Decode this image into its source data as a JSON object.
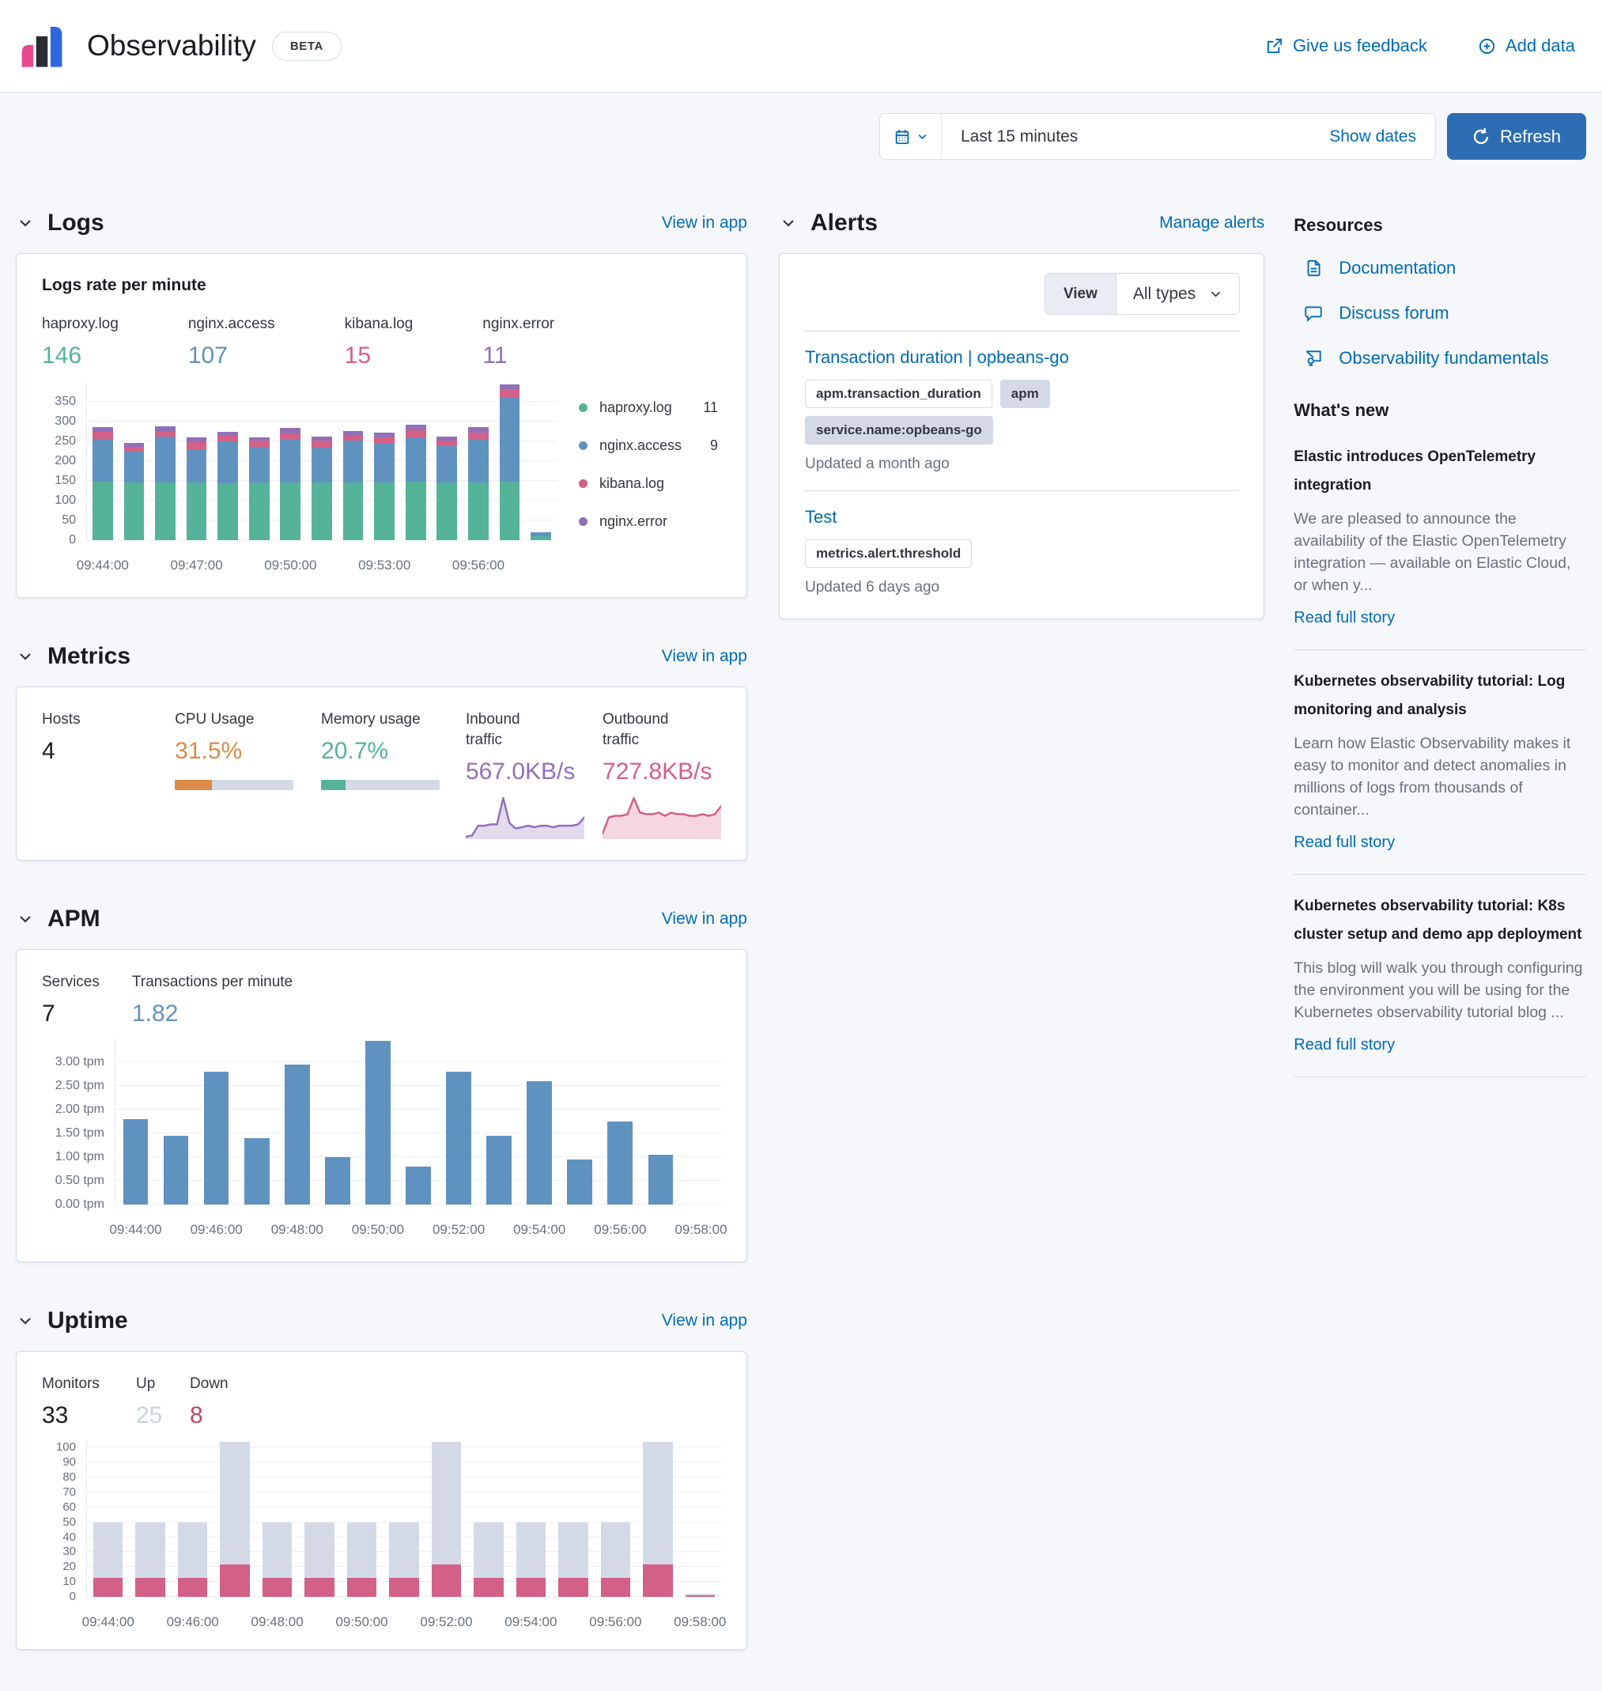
{
  "header": {
    "title": "Observability",
    "beta_badge": "BETA",
    "feedback_link": "Give us feedback",
    "add_data_link": "Add data"
  },
  "timebar": {
    "range_label": "Last 15 minutes",
    "show_dates_label": "Show dates",
    "refresh_label": "Refresh"
  },
  "sections": {
    "logs": {
      "title": "Logs",
      "action": "View in app"
    },
    "alerts": {
      "title": "Alerts",
      "action": "Manage alerts"
    },
    "metrics": {
      "title": "Metrics",
      "action": "View in app"
    },
    "apm": {
      "title": "APM",
      "action": "View in app"
    },
    "uptime": {
      "title": "Uptime",
      "action": "View in app"
    }
  },
  "logs_card": {
    "title": "Logs rate per minute",
    "stats": [
      {
        "label": "haproxy.log",
        "value": "146",
        "color": "#54B399"
      },
      {
        "label": "nginx.access",
        "value": "107",
        "color": "#6092C0"
      },
      {
        "label": "kibana.log",
        "value": "15",
        "color": "#D36086"
      },
      {
        "label": "nginx.error",
        "value": "11",
        "color": "#9170B8"
      }
    ],
    "legend": [
      {
        "label": "haproxy.log",
        "value": "11",
        "color": "#54B399"
      },
      {
        "label": "nginx.access",
        "value": "9",
        "color": "#6092C0"
      },
      {
        "label": "kibana.log",
        "value": "",
        "color": "#D36086"
      },
      {
        "label": "nginx.error",
        "value": "",
        "color": "#9170B8"
      }
    ],
    "chart_data": {
      "type": "bar",
      "stacked": true,
      "title": "Logs rate per minute",
      "categories": [
        "09:44:00",
        "09:45:00",
        "09:46:00",
        "09:47:00",
        "09:48:00",
        "09:49:00",
        "09:50:00",
        "09:51:00",
        "09:52:00",
        "09:53:00",
        "09:54:00",
        "09:55:00",
        "09:56:00",
        "09:57:00",
        "09:58:00"
      ],
      "series": [
        {
          "name": "haproxy.log",
          "color": "#54B399",
          "values": [
            148,
            146,
            147,
            147,
            145,
            147,
            147,
            147,
            147,
            147,
            148,
            147,
            147,
            148,
            10
          ]
        },
        {
          "name": "nginx.access",
          "color": "#6092C0",
          "values": [
            108,
            79,
            116,
            84,
            105,
            89,
            109,
            88,
            105,
            98,
            113,
            92,
            109,
            215,
            10
          ]
        },
        {
          "name": "kibana.log",
          "color": "#D36086",
          "values": [
            18,
            12,
            13,
            17,
            15,
            16,
            15,
            17,
            13,
            15,
            18,
            13,
            17,
            20,
            0
          ]
        },
        {
          "name": "nginx.error",
          "color": "#9170B8",
          "values": [
            12,
            9,
            12,
            12,
            10,
            9,
            13,
            11,
            12,
            12,
            13,
            10,
            14,
            12,
            0
          ]
        }
      ],
      "ylim": [
        0,
        400
      ],
      "yticks": [
        0,
        50,
        100,
        150,
        200,
        250,
        300,
        350
      ],
      "label_every": 3,
      "legend_position": "right",
      "grid": true
    }
  },
  "alerts_card": {
    "view_label": "View",
    "view_value": "All types",
    "items": [
      {
        "title": "Transaction duration | opbeans-go",
        "badges": [
          {
            "text": "apm.transaction_duration",
            "variant": "hollow"
          },
          {
            "text": "apm",
            "variant": "filled"
          },
          {
            "text": "service.name:opbeans-go",
            "variant": "filled"
          }
        ],
        "updated": "Updated a month ago"
      },
      {
        "title": "Test",
        "badges": [
          {
            "text": "metrics.alert.threshold",
            "variant": "hollow"
          }
        ],
        "updated": "Updated 6 days ago"
      }
    ]
  },
  "metrics_card": {
    "stats": [
      {
        "label": "Hosts",
        "value": "4",
        "color": "#1A1C21"
      },
      {
        "label": "CPU Usage",
        "value": "31.5%",
        "color": "#DA8B45",
        "bar_pct": 31.5
      },
      {
        "label": "Memory usage",
        "value": "20.7%",
        "color": "#54B399",
        "bar_pct": 20.7
      },
      {
        "label": "Inbound traffic",
        "value": "567.0KB/s",
        "color": "#9170B8",
        "spark": [
          0,
          1,
          8,
          8,
          9,
          9,
          28,
          10,
          6,
          7,
          8,
          7,
          8,
          8,
          7,
          8,
          8,
          8,
          9,
          14
        ]
      },
      {
        "label": "Outbound traffic",
        "value": "727.8KB/s",
        "color": "#D36086",
        "spark": [
          2,
          12,
          13,
          13,
          14,
          24,
          15,
          14,
          14,
          15,
          13,
          15,
          14,
          14,
          13,
          13,
          14,
          13,
          14,
          19
        ]
      }
    ]
  },
  "apm_card": {
    "stats": [
      {
        "label": "Services",
        "value": "7",
        "color": "#1A1C21"
      },
      {
        "label": "Transactions per minute",
        "value": "1.82",
        "color": "#6092C0"
      }
    ],
    "chart_data": {
      "type": "bar",
      "stacked": false,
      "title": "Transactions per minute",
      "categories": [
        "09:44:00",
        "09:45:00",
        "09:46:00",
        "09:47:00",
        "09:48:00",
        "09:49:00",
        "09:50:00",
        "09:51:00",
        "09:52:00",
        "09:53:00",
        "09:54:00",
        "09:55:00",
        "09:56:00",
        "09:57:00",
        "09:58:00"
      ],
      "series": [
        {
          "name": "transactions per minute",
          "color": "#6092C0",
          "values": [
            1.8,
            1.45,
            2.8,
            1.4,
            2.95,
            1.0,
            3.45,
            0.8,
            2.8,
            1.45,
            2.6,
            0.95,
            1.75,
            1.05,
            0
          ]
        }
      ],
      "ylim": [
        0,
        3.5
      ],
      "yticks": [
        0,
        0.5,
        1,
        1.5,
        2,
        2.5,
        3
      ],
      "ytick_suffix": " tpm",
      "label_every": 2,
      "grid": true
    }
  },
  "uptime_card": {
    "stats": [
      {
        "label": "Monitors",
        "value": "33",
        "color": "#1A1C21"
      },
      {
        "label": "Up",
        "value": "25",
        "color": "#C9D3DF"
      },
      {
        "label": "Down",
        "value": "8",
        "color": "#C0456A"
      }
    ],
    "chart_data": {
      "type": "bar",
      "stacked": true,
      "title": "Monitors up/down",
      "categories": [
        "09:44:00",
        "09:45:00",
        "09:46:00",
        "09:47:00",
        "09:48:00",
        "09:49:00",
        "09:50:00",
        "09:51:00",
        "09:52:00",
        "09:53:00",
        "09:54:00",
        "09:55:00",
        "09:56:00",
        "09:57:00",
        "09:58:00"
      ],
      "series": [
        {
          "name": "Down",
          "color": "#D36086",
          "values": [
            13,
            13,
            13,
            22,
            13,
            13,
            13,
            13,
            22,
            13,
            13,
            13,
            13,
            22,
            1
          ]
        },
        {
          "name": "Up",
          "color": "#D3DAE6",
          "values": [
            37,
            37,
            37,
            82,
            37,
            37,
            37,
            37,
            82,
            37,
            37,
            37,
            37,
            82,
            1
          ]
        }
      ],
      "ylim": [
        0,
        105
      ],
      "yticks": [
        0,
        10,
        20,
        30,
        40,
        50,
        60,
        70,
        80,
        90,
        100
      ],
      "label_every": 2,
      "grid": true
    }
  },
  "resources": {
    "title": "Resources",
    "links": [
      {
        "label": "Documentation",
        "icon": "document-icon"
      },
      {
        "label": "Discuss forum",
        "icon": "discuss-icon"
      },
      {
        "label": "Observability fundamentals",
        "icon": "training-icon"
      }
    ]
  },
  "whats_new": {
    "title": "What's new",
    "read_more_label": "Read full story",
    "posts": [
      {
        "title": "Elastic introduces OpenTelemetry integration",
        "excerpt": "We are pleased to announce the availability of the Elastic OpenTelemetry integration — available on Elastic Cloud, or when y..."
      },
      {
        "title": "Kubernetes observability tutorial: Log monitoring and analysis",
        "excerpt": "Learn how Elastic Observability makes it easy to monitor and detect anomalies in millions of logs from thousands of container..."
      },
      {
        "title": "Kubernetes observability tutorial: K8s cluster setup and demo app deployment",
        "excerpt": "This blog will walk you through configuring the environment you will be using for the Kubernetes observability tutorial blog ..."
      }
    ]
  }
}
